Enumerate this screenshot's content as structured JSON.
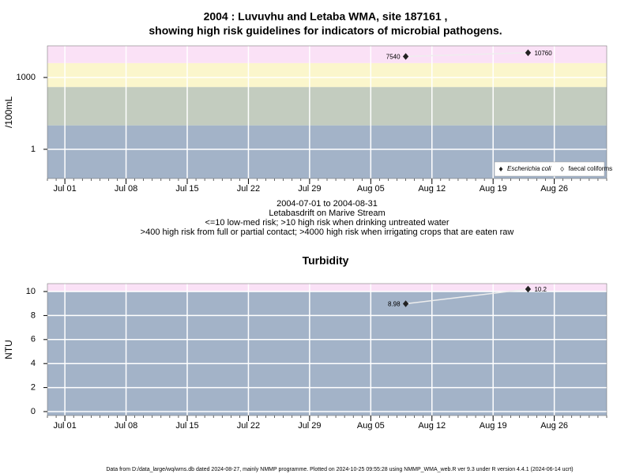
{
  "chart_data": [
    {
      "type": "line",
      "title": [
        "2004 : Luvuvhu and Letaba WMA, site 187161 ,",
        "showing high risk guidelines for indicators of microbial pathogens."
      ],
      "ylabel": "/100mL",
      "ylog": true,
      "ylim": [
        0.06,
        21000
      ],
      "yticks": [
        1,
        1000
      ],
      "xlim": [
        "2004-06-29",
        "2004-09-01"
      ],
      "xticks": [
        {
          "value": "2004-07-01",
          "label": "Jul 01"
        },
        {
          "value": "2004-07-08",
          "label": "Jul 08"
        },
        {
          "value": "2004-07-15",
          "label": "Jul 15"
        },
        {
          "value": "2004-07-22",
          "label": "Jul 22"
        },
        {
          "value": "2004-07-29",
          "label": "Jul 29"
        },
        {
          "value": "2004-08-05",
          "label": "Aug 05"
        },
        {
          "value": "2004-08-12",
          "label": "Aug 12"
        },
        {
          "value": "2004-08-19",
          "label": "Aug 19"
        },
        {
          "value": "2004-08-26",
          "label": "Aug 26"
        }
      ],
      "grid": true,
      "band_edges": [
        10,
        400,
        4000
      ],
      "band_colors": [
        "#a3b3c8",
        "#c3ccbf",
        "#fbf6cc",
        "#fae1f6"
      ],
      "x": [
        "2004-08-09",
        "2004-08-23"
      ],
      "series": [
        {
          "name": "Escherichia coli",
          "color": "#222222",
          "marker": "filled",
          "values": [
            7540,
            10760
          ]
        },
        {
          "name": "faecal coliforms",
          "color": "#222222",
          "marker": "open",
          "values": [
            null,
            null
          ]
        }
      ],
      "legend": "bottom right",
      "notes": [
        "2004-07-01 to 2004-08-31",
        "Letabasdrift on Marive Stream",
        "<=10 low-med risk; >10 high risk when drinking untreated water",
        ">400 high risk from full or partial contact; >4000 high risk when irrigating crops that are eaten raw"
      ]
    },
    {
      "type": "line",
      "title": [
        "Turbidity"
      ],
      "ylabel": "NTU",
      "ylog": false,
      "ylim": [
        -0.33,
        10.66
      ],
      "yticks": [
        0,
        2,
        4,
        6,
        8,
        10
      ],
      "xlim": [
        "2004-06-29",
        "2004-09-01"
      ],
      "xticks": [
        {
          "value": "2004-07-01",
          "label": "Jul 01"
        },
        {
          "value": "2004-07-08",
          "label": "Jul 08"
        },
        {
          "value": "2004-07-15",
          "label": "Jul 15"
        },
        {
          "value": "2004-07-22",
          "label": "Jul 22"
        },
        {
          "value": "2004-07-29",
          "label": "Jul 29"
        },
        {
          "value": "2004-08-05",
          "label": "Aug 05"
        },
        {
          "value": "2004-08-12",
          "label": "Aug 12"
        },
        {
          "value": "2004-08-19",
          "label": "Aug 19"
        },
        {
          "value": "2004-08-26",
          "label": "Aug 26"
        }
      ],
      "grid": true,
      "band_edges": [
        10
      ],
      "band_colors": [
        "#a3b3c8",
        "#fae1f6"
      ],
      "x": [
        "2004-08-09",
        "2004-08-23"
      ],
      "series": [
        {
          "name": "Turbidity",
          "color": "#222222",
          "marker": "filled",
          "values": [
            8.98,
            10.2
          ]
        }
      ]
    }
  ],
  "footer": "Data from D:/data_large/wq/wms.db dated 2024-08-27, mainly NMMP programme. Plotted on 2024-10-25 09:55:28 using NMMP_WMA_web.R ver 9.3 under R version 4.4.1 (2024-06-14 ucrt)"
}
